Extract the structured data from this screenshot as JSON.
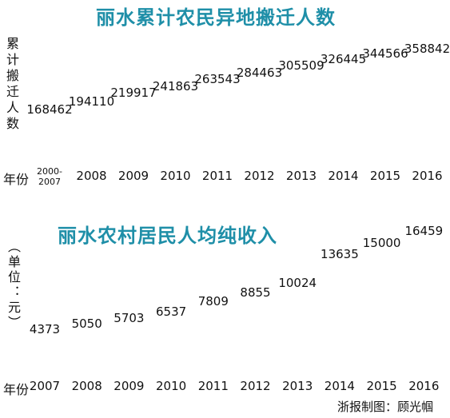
{
  "chart_data": [
    {
      "type": "scatter",
      "title": "丽水累计农民异地搬迁人数",
      "ylabel": "累计搬迁人数",
      "xlabel": "年份",
      "categories": [
        "2000-2007",
        "2008",
        "2009",
        "2010",
        "2011",
        "2012",
        "2013",
        "2014",
        "2015",
        "2016"
      ],
      "values": [
        168462,
        194110,
        219917,
        241863,
        263543,
        284463,
        305509,
        326445,
        344566,
        358842
      ],
      "labels": [
        "168462",
        "194110",
        "219917",
        "241863",
        "263543",
        "284463",
        "305509",
        "326445",
        "344566",
        "358842"
      ],
      "grid": false
    },
    {
      "type": "scatter",
      "title": "丽水农村居民人均纯收入",
      "ylabel": "（单位：元）",
      "xlabel": "年份",
      "categories": [
        "2007",
        "2008",
        "2009",
        "2010",
        "2011",
        "2012",
        "2013",
        "2014",
        "2015",
        "2016"
      ],
      "values": [
        4373,
        5050,
        5703,
        6537,
        7809,
        8855,
        10024,
        13635,
        15000,
        16459
      ],
      "labels": [
        "4373",
        "5050",
        "5703",
        "6537",
        "7809",
        "8855",
        "10024",
        "13635",
        "15000",
        "16459"
      ],
      "grid": false
    }
  ],
  "credit": "浙报制图：顾光帼",
  "colors": {
    "title": "#1f8fa8",
    "text": "#111111"
  }
}
